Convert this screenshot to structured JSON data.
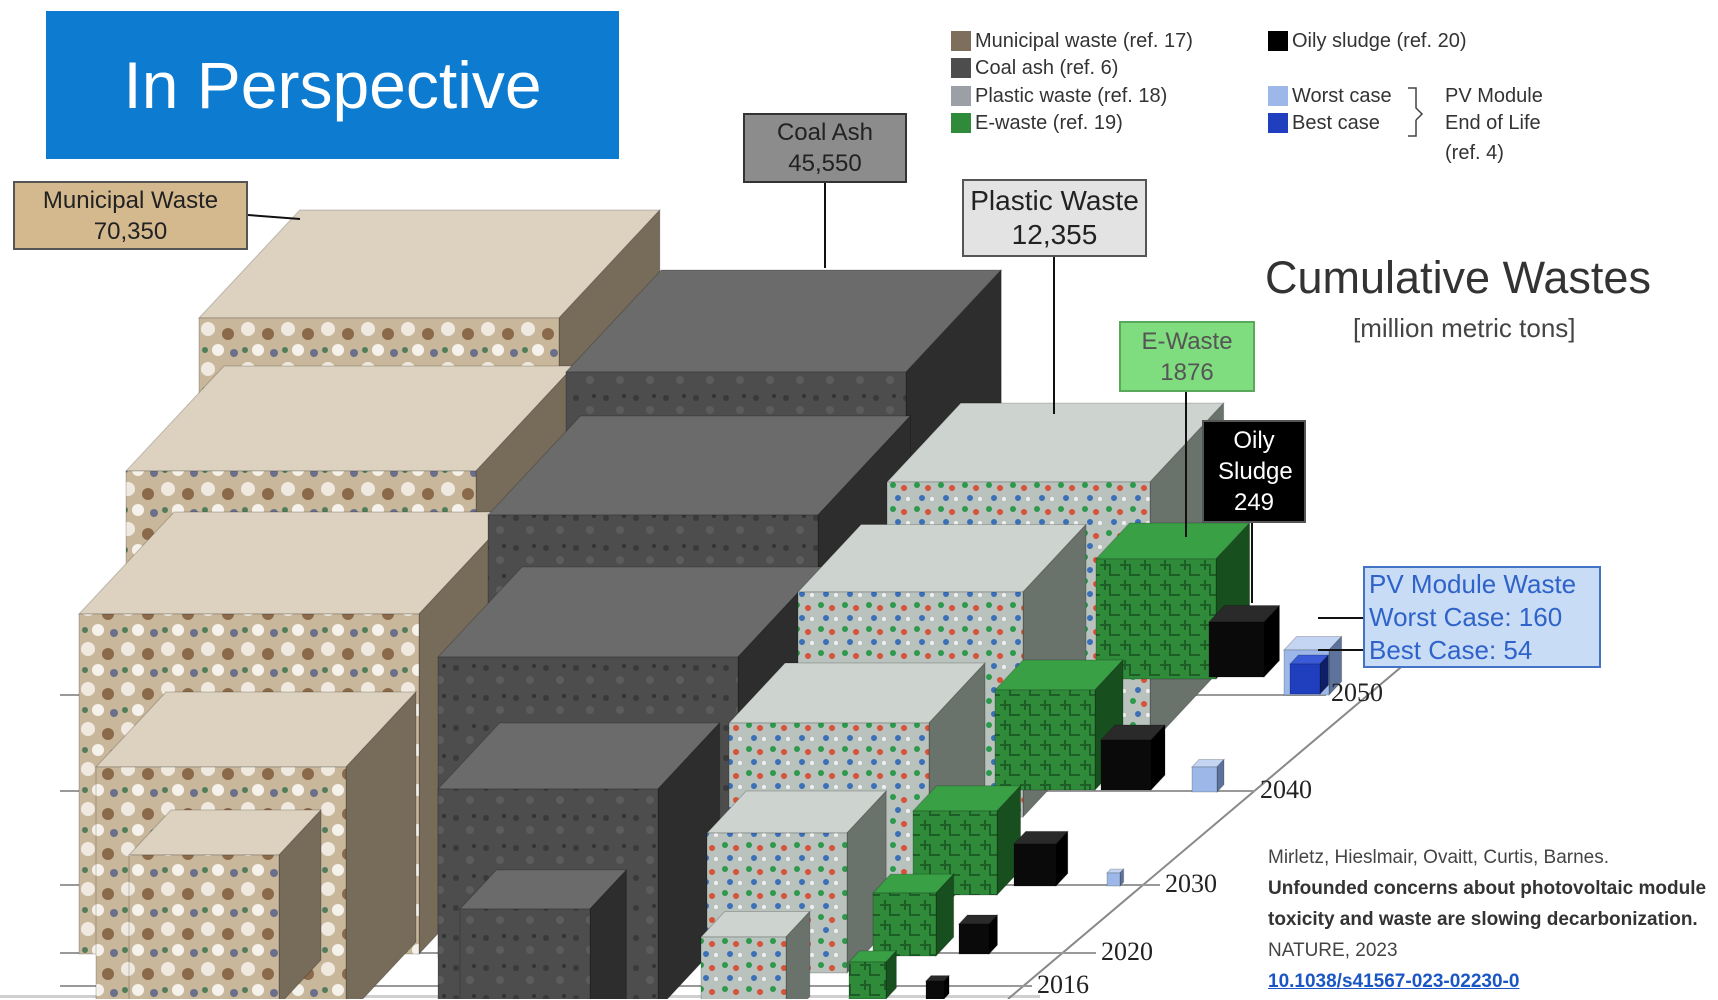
{
  "header": {
    "title": "In Perspective"
  },
  "legend": {
    "items": [
      "Municipal waste (ref. 17)",
      "Coal ash (ref. 6)",
      "Plastic waste (ref. 18)",
      "E-waste (ref. 19)",
      "Oily sludge (ref. 20)"
    ],
    "pv_items": [
      "Worst case",
      "Best case"
    ],
    "pv_label": [
      "PV Module",
      "End of Life",
      "(ref. 4)"
    ]
  },
  "title": "Cumulative Wastes",
  "subtitle": "[million metric tons]",
  "callouts": [
    {
      "label": "Municipal Waste",
      "value": "70,350"
    },
    {
      "label": "Coal Ash",
      "value": "45,550"
    },
    {
      "label": "Plastic Waste",
      "value": "12,355"
    },
    {
      "label": "E-Waste",
      "value": "1876"
    },
    {
      "label": "Oily Sludge",
      "value": "249"
    }
  ],
  "pv_callout": {
    "label": "PV Module Waste",
    "worst": "Worst Case: 160",
    "best": "Best Case: 54"
  },
  "years": [
    "2050",
    "2040",
    "2030",
    "2020",
    "2016"
  ],
  "citation": {
    "authors": "Mirletz, Hieslmair, Ovaitt, Curtis, Barnes.",
    "title": "Unfounded concerns about photovoltaic module toxicity and waste are slowing decarbonization.",
    "journal": "NATURE, 2023",
    "doi": "10.1038/s41567-023-02230-0"
  }
}
